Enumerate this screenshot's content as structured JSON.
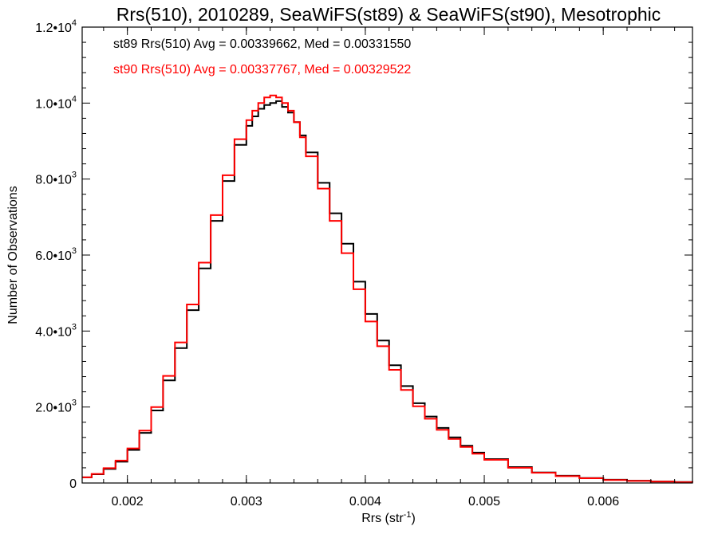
{
  "chart_data": {
    "type": "line",
    "step": true,
    "title": "Rrs(510), 2010289, SeaWiFS(st89) & SeaWiFS(st90), Mesotrophic",
    "xlabel_base": "Rrs (str",
    "xlabel_sup": "-1",
    "xlabel_end": ")",
    "ylabel": "Number of Observations",
    "xlim": [
      0.00162,
      0.00675
    ],
    "ylim": [
      0,
      12000
    ],
    "x_ticks": [
      {
        "value": 0.002,
        "label": "0.002"
      },
      {
        "value": 0.003,
        "label": "0.003"
      },
      {
        "value": 0.004,
        "label": "0.004"
      },
      {
        "value": 0.005,
        "label": "0.005"
      },
      {
        "value": 0.006,
        "label": "0.006"
      }
    ],
    "y_ticks": [
      {
        "value": 0,
        "mant": "0",
        "exp": ""
      },
      {
        "value": 2000,
        "mant": "2.0•10",
        "exp": "3"
      },
      {
        "value": 4000,
        "mant": "4.0•10",
        "exp": "3"
      },
      {
        "value": 6000,
        "mant": "6.0•10",
        "exp": "3"
      },
      {
        "value": 8000,
        "mant": "8.0•10",
        "exp": "3"
      },
      {
        "value": 10000,
        "mant": "1.0•10",
        "exp": "4"
      },
      {
        "value": 12000,
        "mant": "1.2•10",
        "exp": "4"
      }
    ],
    "annotations": [
      "st89 Rrs(510) Avg = 0.00339662, Med = 0.00331550",
      "st90 Rrs(510) Avg = 0.00337767, Med = 0.00329522"
    ],
    "series": [
      {
        "name": "st89",
        "color": "#000000",
        "x": [
          0.00162,
          0.0017,
          0.0018,
          0.0019,
          0.002,
          0.0021,
          0.0022,
          0.0023,
          0.0024,
          0.0025,
          0.0026,
          0.0027,
          0.0028,
          0.0029,
          0.003,
          0.00305,
          0.0031,
          0.00315,
          0.0032,
          0.00325,
          0.0033,
          0.00335,
          0.0034,
          0.00345,
          0.0035,
          0.0036,
          0.0037,
          0.0038,
          0.0039,
          0.004,
          0.0041,
          0.0042,
          0.0043,
          0.0044,
          0.0045,
          0.0046,
          0.0047,
          0.0048,
          0.0049,
          0.005,
          0.0052,
          0.0054,
          0.0056,
          0.0058,
          0.006,
          0.0062,
          0.0064,
          0.0066,
          0.00675
        ],
        "y": [
          150,
          230,
          370,
          560,
          870,
          1320,
          1910,
          2700,
          3550,
          4550,
          5650,
          6900,
          7950,
          8900,
          9400,
          9650,
          9850,
          9950,
          10000,
          10050,
          9900,
          9750,
          9500,
          9150,
          8700,
          7900,
          7100,
          6300,
          5300,
          4450,
          3750,
          3100,
          2550,
          2100,
          1750,
          1450,
          1200,
          980,
          800,
          630,
          420,
          280,
          190,
          130,
          85,
          60,
          40,
          25,
          15
        ]
      },
      {
        "name": "st90",
        "color": "#ff0000",
        "x": [
          0.00162,
          0.0017,
          0.0018,
          0.0019,
          0.002,
          0.0021,
          0.0022,
          0.0023,
          0.0024,
          0.0025,
          0.0026,
          0.0027,
          0.0028,
          0.0029,
          0.003,
          0.00305,
          0.0031,
          0.00315,
          0.0032,
          0.00325,
          0.0033,
          0.00335,
          0.0034,
          0.00345,
          0.0035,
          0.0036,
          0.0037,
          0.0038,
          0.0039,
          0.004,
          0.0041,
          0.0042,
          0.0043,
          0.0044,
          0.0045,
          0.0046,
          0.0047,
          0.0048,
          0.0049,
          0.005,
          0.0052,
          0.0054,
          0.0056,
          0.0058,
          0.006,
          0.0062,
          0.0064,
          0.0066,
          0.00675
        ],
        "y": [
          150,
          240,
          390,
          590,
          910,
          1380,
          2000,
          2820,
          3700,
          4700,
          5800,
          7050,
          8100,
          9050,
          9550,
          9800,
          10000,
          10150,
          10200,
          10150,
          10000,
          9800,
          9500,
          9100,
          8600,
          7750,
          6900,
          6050,
          5100,
          4250,
          3600,
          2980,
          2450,
          2020,
          1690,
          1400,
          1160,
          950,
          770,
          610,
          400,
          270,
          180,
          125,
          80,
          55,
          35,
          22,
          12
        ]
      }
    ]
  }
}
